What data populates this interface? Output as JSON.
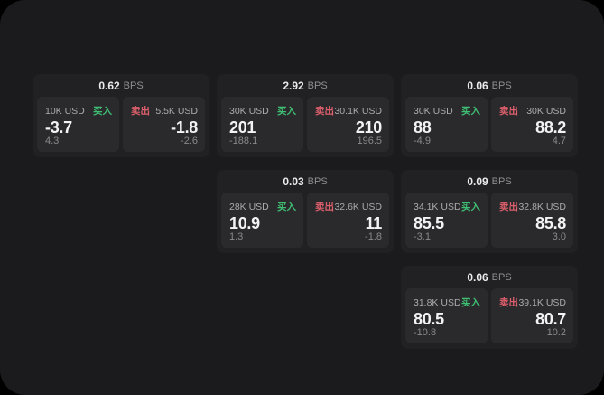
{
  "colors": {
    "panel-bg": "#1b1b1d",
    "card-bg": "#212124",
    "tile-bg": "#2a2a2d",
    "buy-green": "#3fbf72",
    "sell-red": "#dd5f6b",
    "value-white": "#f3f3f3",
    "label-gray": "#ababab",
    "sub-gray": "#8a8a8a"
  },
  "labels": {
    "bps_unit": "BPS",
    "buy": "买入",
    "sell": "卖出"
  },
  "cards": [
    {
      "row": 1,
      "col": 1,
      "bps": "0.62",
      "buy": {
        "amount": "10K USD",
        "value": "-3.7",
        "sub": "4.3"
      },
      "sell": {
        "amount": "5.5K USD",
        "value": "-1.8",
        "sub": "-2.6"
      }
    },
    {
      "row": 1,
      "col": 2,
      "bps": "2.92",
      "buy": {
        "amount": "30K USD",
        "value": "201",
        "sub": "-188.1"
      },
      "sell": {
        "amount": "30.1K USD",
        "value": "210",
        "sub": "196.5"
      }
    },
    {
      "row": 1,
      "col": 3,
      "bps": "0.06",
      "buy": {
        "amount": "30K USD",
        "value": "88",
        "sub": "-4.9"
      },
      "sell": {
        "amount": "30K USD",
        "value": "88.2",
        "sub": "4.7"
      }
    },
    {
      "row": 2,
      "col": 2,
      "bps": "0.03",
      "buy": {
        "amount": "28K USD",
        "value": "10.9",
        "sub": "1.3"
      },
      "sell": {
        "amount": "32.6K USD",
        "value": "11",
        "sub": "-1.8"
      }
    },
    {
      "row": 2,
      "col": 3,
      "bps": "0.09",
      "buy": {
        "amount": "34.1K USD",
        "value": "85.5",
        "sub": "-3.1"
      },
      "sell": {
        "amount": "32.8K USD",
        "value": "85.8",
        "sub": "3.0"
      }
    },
    {
      "row": 3,
      "col": 3,
      "bps": "0.06",
      "buy": {
        "amount": "31.8K USD",
        "value": "80.5",
        "sub": "-10.8"
      },
      "sell": {
        "amount": "39.1K USD",
        "value": "80.7",
        "sub": "10.2"
      }
    }
  ]
}
